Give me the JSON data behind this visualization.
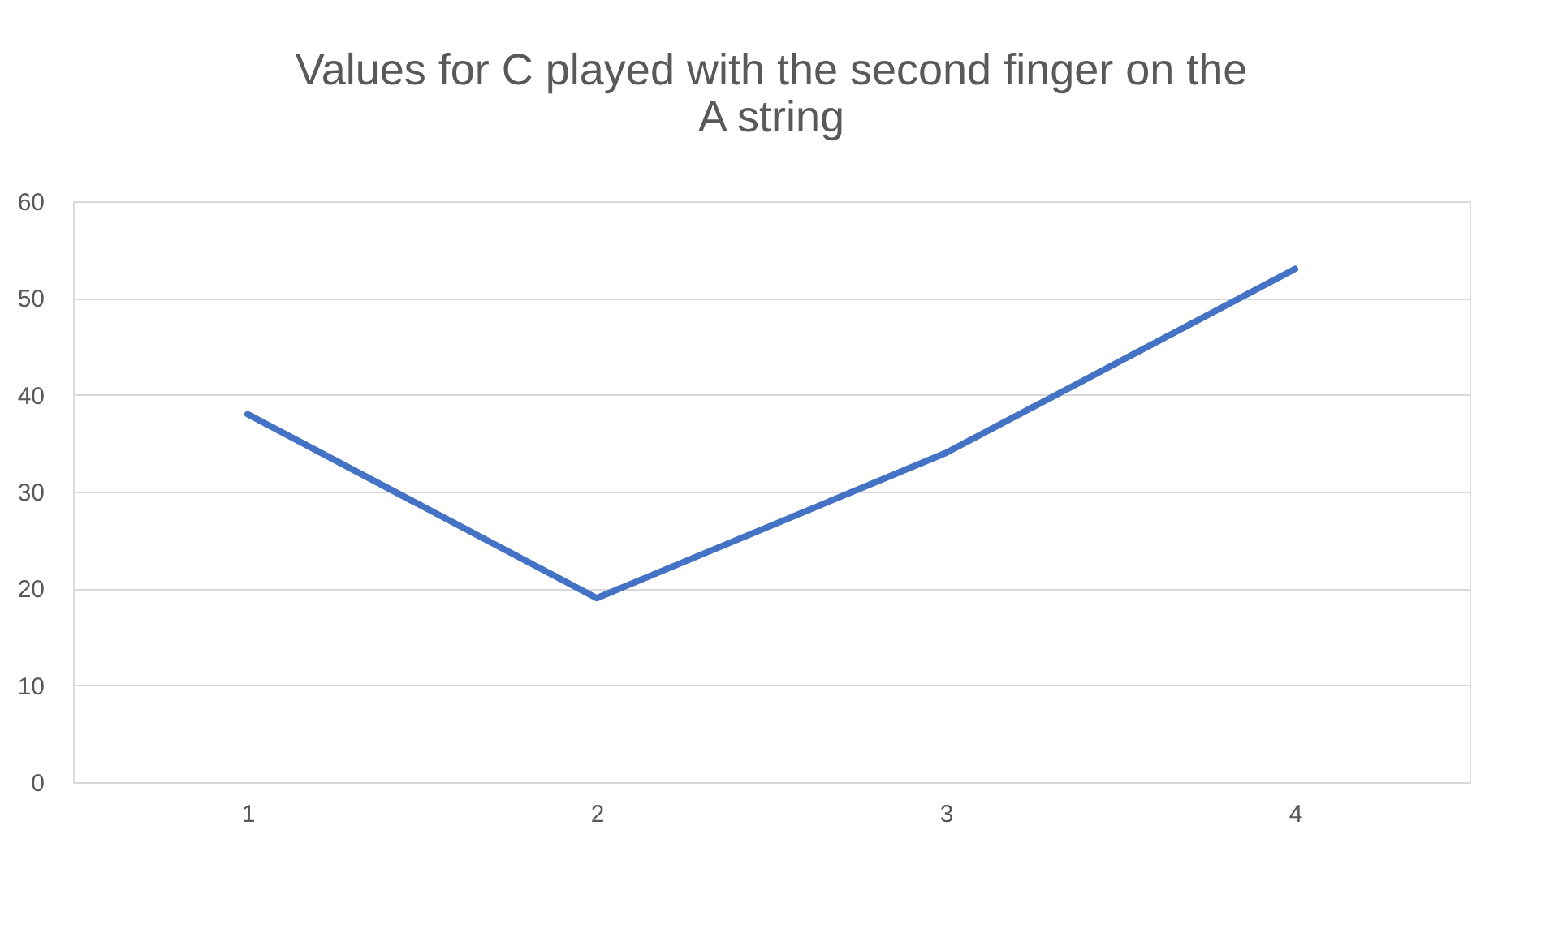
{
  "chart_data": {
    "type": "line",
    "title": "Values for C played with the second finger on the A string",
    "categories": [
      "1",
      "2",
      "3",
      "4"
    ],
    "series": [
      {
        "color": "#4472c4",
        "values": [
          38,
          19,
          34,
          53
        ]
      }
    ],
    "ylim": [
      0,
      60
    ],
    "yticks": [
      0,
      10,
      20,
      30,
      40,
      50,
      60
    ],
    "grid": "y",
    "legend": false,
    "marker": "none",
    "line_style": "solid"
  }
}
